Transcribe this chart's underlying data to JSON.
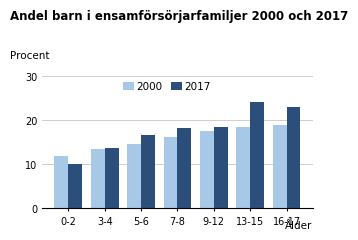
{
  "title": "Andel barn i ensamförsörjarfamiljer 2000 och 2017",
  "ylabel": "Procent",
  "xlabel": "Ålder",
  "categories": [
    "0-2",
    "3-4",
    "5-6",
    "7-8",
    "9-12",
    "13-15",
    "16-17"
  ],
  "values_2000": [
    12.0,
    13.5,
    14.7,
    16.3,
    17.7,
    18.5,
    19.0
  ],
  "values_2017": [
    10.1,
    13.8,
    16.7,
    18.3,
    18.5,
    24.2,
    23.0
  ],
  "color_2000": "#a8c8e8",
  "color_2017": "#2b4f7a",
  "legend_labels": [
    "2000",
    "2017"
  ],
  "ylim": [
    0,
    30
  ],
  "yticks": [
    0,
    10,
    20,
    30
  ],
  "bar_width": 0.38,
  "title_fontsize": 8.5,
  "axis_label_fontsize": 7.5,
  "tick_fontsize": 7.0,
  "legend_fontsize": 7.5,
  "background_color": "#ffffff",
  "grid_color": "#bbbbbb"
}
